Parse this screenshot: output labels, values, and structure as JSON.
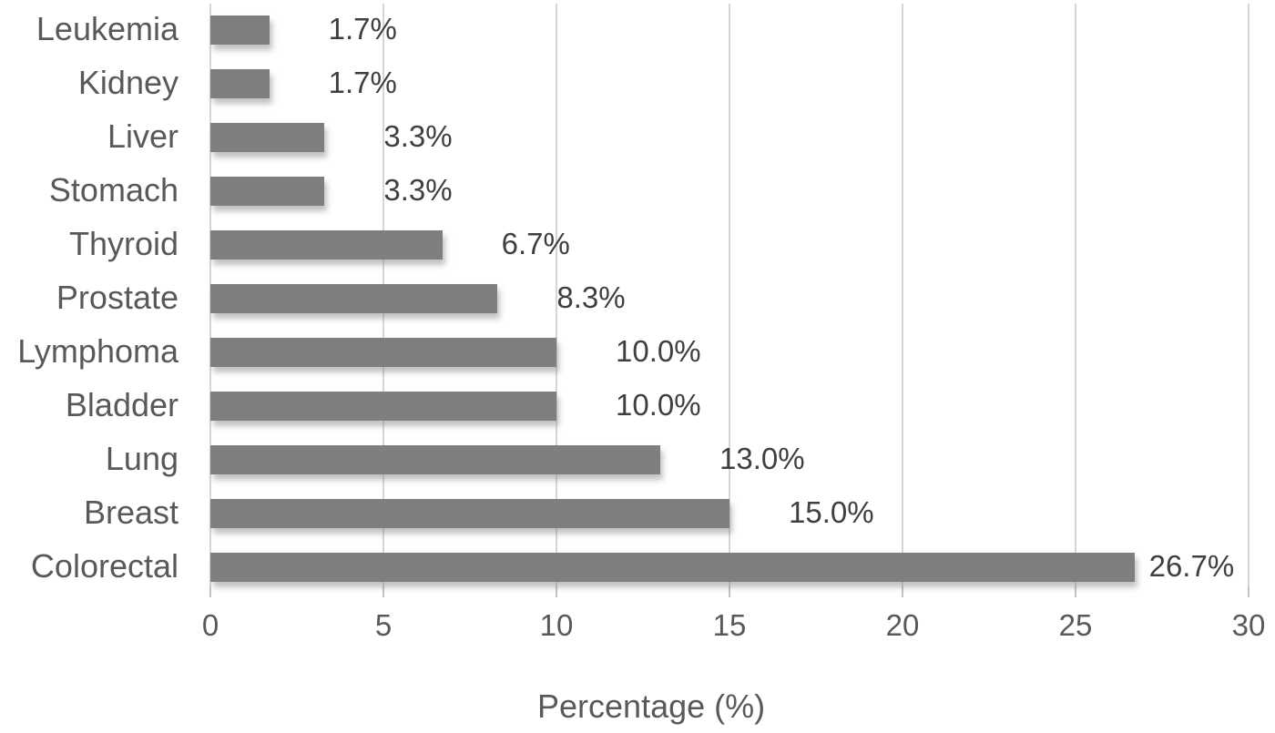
{
  "chart_data": {
    "type": "bar",
    "orientation": "horizontal",
    "title": "",
    "xlabel": "Percentage (%)",
    "ylabel": "",
    "categories": [
      "Leukemia",
      "Kidney",
      "Liver",
      "Stomach",
      "Thyroid",
      "Prostate",
      "Lymphoma",
      "Bladder",
      "Lung",
      "Breast",
      "Colorectal"
    ],
    "values": [
      1.7,
      1.7,
      3.3,
      3.3,
      6.7,
      8.3,
      10.0,
      10.0,
      13.0,
      15.0,
      26.7
    ],
    "data_labels": [
      "1.7%",
      "1.7%",
      "3.3%",
      "3.3%",
      "6.7%",
      "8.3%",
      "10.0%",
      "10.0%",
      "13.0%",
      "15.0%",
      "26.7%"
    ],
    "x_ticks": [
      "0",
      "5",
      "10",
      "15",
      "20",
      "25",
      "30"
    ],
    "xlim": [
      0,
      30
    ],
    "grid": "vertical-only",
    "legend": "none",
    "bar_color": "#7f7f7f",
    "grid_color": "#d6d6d6",
    "data_label_color": "#3f3f3f",
    "axis_text_color": "#595959"
  }
}
